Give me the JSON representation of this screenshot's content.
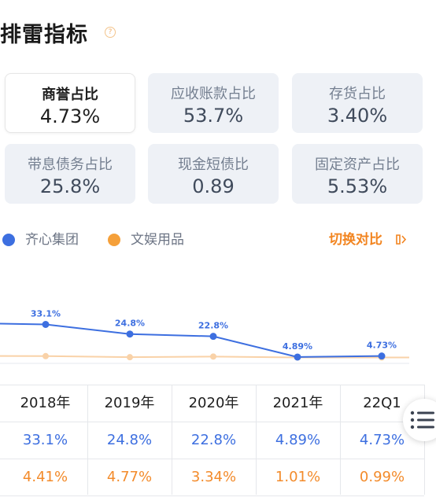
{
  "title": "排雷指标",
  "help_icon": "question-circle-icon",
  "metrics": [
    {
      "label": "商誉占比",
      "value": "4.73%",
      "selected": true
    },
    {
      "label": "应收账款占比",
      "value": "53.7%",
      "selected": false
    },
    {
      "label": "存货占比",
      "value": "3.40%",
      "selected": false
    },
    {
      "label": "带息债务占比",
      "value": "25.8%",
      "selected": false
    },
    {
      "label": "现金短债比",
      "value": "0.89",
      "selected": false
    },
    {
      "label": "固定资产占比",
      "value": "5.53%",
      "selected": false
    }
  ],
  "legend": {
    "series_a": "齐心集团",
    "series_b": "文娱用品",
    "switch_label": "切换对比",
    "switch_icon": "switch-arrows-icon"
  },
  "colors": {
    "series_a": "#3d6fe0",
    "series_b": "#f9d2a8",
    "series_b_text": "#f38b2b",
    "accent": "#f2841f"
  },
  "chart_data": {
    "type": "line",
    "categories": [
      "2018年",
      "2019年",
      "2020年",
      "2021年",
      "22Q1"
    ],
    "series": [
      {
        "name": "齐心集团",
        "values": [
          33.1,
          24.8,
          22.8,
          4.89,
          4.73
        ],
        "labels": [
          "33.1%",
          "24.8%",
          "22.8%",
          "4.89%",
          "4.73%"
        ]
      },
      {
        "name": "文娱用品",
        "values": [
          4.41,
          4.77,
          3.34,
          1.01,
          0.99
        ]
      }
    ]
  },
  "table": {
    "headers": [
      "2018年",
      "2019年",
      "2020年",
      "2021年",
      "22Q1"
    ],
    "rows": [
      {
        "series": "齐心集团",
        "cells": [
          "33.1%",
          "24.8%",
          "22.8%",
          "4.89%",
          "4.73%"
        ]
      },
      {
        "series": "文娱用品",
        "cells": [
          "4.41%",
          "4.77%",
          "3.34%",
          "1.01%",
          "0.99%"
        ]
      }
    ]
  },
  "menu_icon": "list-menu-icon"
}
